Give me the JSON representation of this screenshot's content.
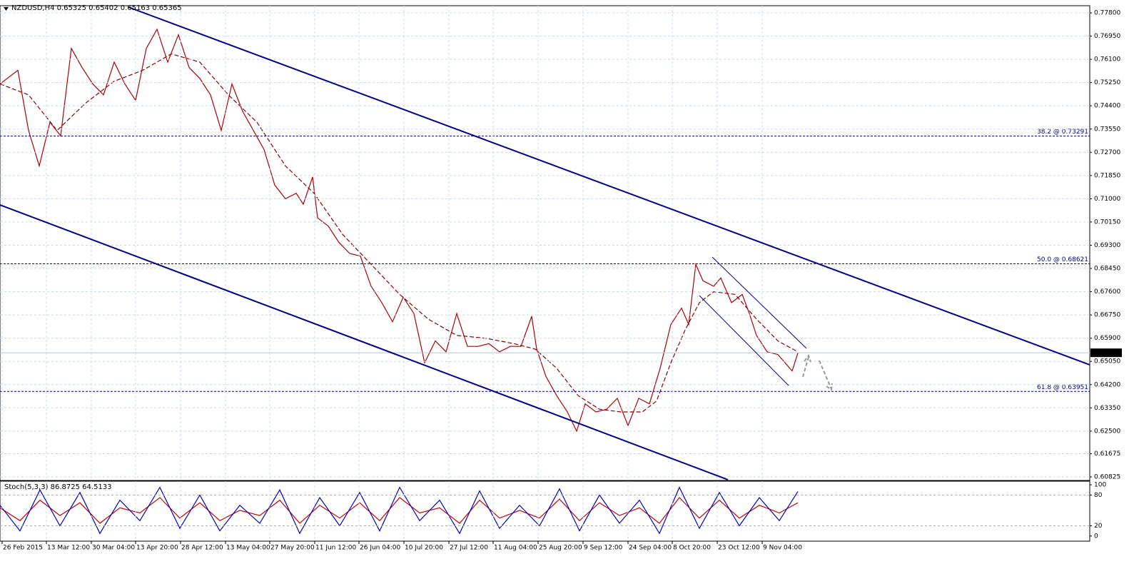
{
  "chart_data": [
    {
      "type": "line",
      "title": "NZDUSD,H4  0.65325 0.65402 0.65163 0.65365",
      "xlim": [
        0,
        1527
      ],
      "xticks": [
        {
          "value": 3,
          "label": "26 Feb 2015"
        },
        {
          "value": 65,
          "label": "13 Mar 12:00"
        },
        {
          "value": 128,
          "label": "30 Mar 04:00"
        },
        {
          "value": 190,
          "label": "13 Apr 20:00"
        },
        {
          "value": 253,
          "label": "28 Apr 12:00"
        },
        {
          "value": 316,
          "label": "13 May 04:00"
        },
        {
          "value": 378,
          "label": "27 May 20:00"
        },
        {
          "value": 441,
          "label": "11 Jun 12:00"
        },
        {
          "value": 503,
          "label": "26 Jun 04:00"
        },
        {
          "value": 566,
          "label": "10 Jul 20:00"
        },
        {
          "value": 629,
          "label": "27 Jul 12:00"
        },
        {
          "value": 691,
          "label": "11 Aug 04:00"
        },
        {
          "value": 754,
          "label": "25 Aug 20:00"
        },
        {
          "value": 817,
          "label": "9 Sep 12:00"
        },
        {
          "value": 880,
          "label": "24 Sep 04:00"
        },
        {
          "value": 942,
          "label": "8 Oct 20:00"
        },
        {
          "value": 1005,
          "label": "23 Oct 12:00"
        },
        {
          "value": 1068,
          "label": "9 Nov 04:00"
        }
      ],
      "ylim": [
        0.60694,
        0.78062
      ],
      "yticks": [
        {
          "value": 0.778,
          "label": "0.77800"
        },
        {
          "value": 0.7695,
          "label": "0.76950"
        },
        {
          "value": 0.761,
          "label": "0.76100"
        },
        {
          "value": 0.7525,
          "label": "0.75250"
        },
        {
          "value": 0.744,
          "label": "0.74400"
        },
        {
          "value": 0.7355,
          "label": "0.73550"
        },
        {
          "value": 0.727,
          "label": "0.72700"
        },
        {
          "value": 0.7185,
          "label": "0.71850"
        },
        {
          "value": 0.71,
          "label": "0.71000"
        },
        {
          "value": 0.7015,
          "label": "0.70150"
        },
        {
          "value": 0.693,
          "label": "0.69300"
        },
        {
          "value": 0.6845,
          "label": "0.68450"
        },
        {
          "value": 0.676,
          "label": "0.67600"
        },
        {
          "value": 0.6675,
          "label": "0.66750"
        },
        {
          "value": 0.659,
          "label": "0.65900"
        },
        {
          "value": 0.6505,
          "label": "0.65050"
        },
        {
          "value": 0.642,
          "label": "0.64200"
        },
        {
          "value": 0.6335,
          "label": "0.63350"
        },
        {
          "value": 0.625,
          "label": "0.62500"
        },
        {
          "value": 0.61675,
          "label": "0.61675"
        },
        {
          "value": 0.60825,
          "label": "0.60825"
        }
      ],
      "grid": true,
      "series": [
        {
          "color": "#b00000",
          "x": [
            0,
            25,
            40,
            55,
            70,
            85,
            100,
            115,
            130,
            145,
            160,
            175,
            190,
            205,
            220,
            235,
            250,
            265,
            280,
            295,
            310,
            325,
            340,
            355,
            370,
            385,
            400,
            415,
            425,
            438,
            445,
            460,
            475,
            490,
            505,
            520,
            535,
            550,
            565,
            580,
            595,
            610,
            625,
            640,
            655,
            670,
            685,
            700,
            715,
            730,
            745,
            752,
            765,
            780,
            795,
            808,
            820,
            835,
            850,
            865,
            880,
            895,
            910,
            925,
            940,
            955,
            965,
            975,
            985,
            1000,
            1010,
            1025,
            1040,
            1050,
            1060,
            1075,
            1090,
            1100,
            1110,
            1118
          ],
          "values": [
            0.752,
            0.757,
            0.735,
            0.722,
            0.738,
            0.733,
            0.765,
            0.758,
            0.752,
            0.748,
            0.76,
            0.752,
            0.746,
            0.765,
            0.772,
            0.76,
            0.77,
            0.758,
            0.754,
            0.748,
            0.735,
            0.752,
            0.742,
            0.735,
            0.728,
            0.715,
            0.71,
            0.712,
            0.708,
            0.718,
            0.703,
            0.7,
            0.694,
            0.69,
            0.689,
            0.678,
            0.672,
            0.665,
            0.674,
            0.668,
            0.65,
            0.658,
            0.654,
            0.668,
            0.656,
            0.656,
            0.657,
            0.654,
            0.656,
            0.656,
            0.667,
            0.655,
            0.645,
            0.638,
            0.632,
            0.625,
            0.635,
            0.632,
            0.633,
            0.637,
            0.627,
            0.637,
            0.635,
            0.648,
            0.664,
            0.67,
            0.664,
            0.686,
            0.68,
            0.678,
            0.681,
            0.672,
            0.675,
            0.668,
            0.66,
            0.654,
            0.653,
            0.65,
            0.647,
            0.6536
          ]
        },
        {
          "color": "#8b0000",
          "dashed": true,
          "x": [
            0,
            40,
            80,
            120,
            160,
            200,
            240,
            280,
            320,
            360,
            400,
            440,
            480,
            520,
            560,
            600,
            640,
            680,
            720,
            750,
            780,
            810,
            840,
            870,
            900,
            920,
            940,
            960,
            980,
            1000,
            1030,
            1060,
            1090,
            1118
          ],
          "values": [
            0.752,
            0.748,
            0.735,
            0.745,
            0.753,
            0.757,
            0.763,
            0.76,
            0.748,
            0.738,
            0.722,
            0.712,
            0.697,
            0.686,
            0.675,
            0.666,
            0.66,
            0.659,
            0.657,
            0.655,
            0.648,
            0.638,
            0.633,
            0.632,
            0.632,
            0.636,
            0.65,
            0.662,
            0.672,
            0.676,
            0.675,
            0.666,
            0.658,
            0.654
          ]
        }
      ],
      "levels": [
        {
          "value": 0.73291,
          "label": "38.2 @ 0.73291"
        },
        {
          "value": 0.68621,
          "label": "50.0 @ 0.68621"
        },
        {
          "value": 0.63951,
          "label": "61.8 @ 0.63951"
        }
      ],
      "last_price": {
        "value": 0.65365,
        "label": "0.65365"
      }
    },
    {
      "type": "line",
      "title": "Stoch(5,3,3) 86.8725 64.5133",
      "ylim": [
        -10,
        107
      ],
      "yticks": [
        0,
        20,
        80,
        100
      ],
      "x": [
        0,
        28,
        56,
        84,
        112,
        140,
        168,
        196,
        224,
        252,
        280,
        308,
        336,
        364,
        392,
        420,
        448,
        476,
        504,
        532,
        560,
        588,
        616,
        644,
        672,
        700,
        728,
        756,
        784,
        812,
        840,
        868,
        896,
        924,
        952,
        980,
        1008,
        1036,
        1064,
        1092,
        1118
      ],
      "series": [
        {
          "color": "#0000cc",
          "values": [
            60,
            10,
            90,
            20,
            85,
            5,
            70,
            30,
            95,
            15,
            80,
            10,
            60,
            25,
            90,
            5,
            75,
            20,
            85,
            10,
            95,
            30,
            70,
            5,
            88,
            15,
            60,
            20,
            92,
            10,
            80,
            25,
            70,
            5,
            95,
            15,
            85,
            20,
            75,
            30,
            87
          ]
        },
        {
          "color": "#cc0000",
          "values": [
            55,
            30,
            70,
            40,
            65,
            25,
            55,
            45,
            75,
            35,
            65,
            30,
            50,
            40,
            70,
            25,
            60,
            35,
            65,
            30,
            75,
            45,
            55,
            25,
            70,
            35,
            50,
            35,
            72,
            30,
            65,
            40,
            55,
            25,
            75,
            35,
            70,
            35,
            60,
            45,
            65
          ]
        }
      ]
    }
  ]
}
